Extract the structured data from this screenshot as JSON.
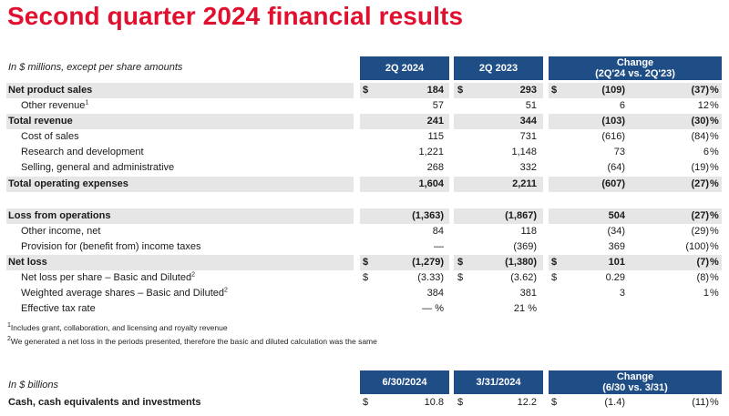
{
  "title": "Second quarter 2024 financial results",
  "income": {
    "units_label": "In $ millions, except per share amounts",
    "headers": {
      "col1": "2Q 2024",
      "col2": "2Q 2023",
      "change_line1": "Change",
      "change_line2": "(2Q'24 vs. 2Q'23)"
    },
    "rows": [
      {
        "label": "Net product sales",
        "sup": "",
        "bold": true,
        "indent": false,
        "shaded": true,
        "d1": "$",
        "v1": "184",
        "d2": "$",
        "v2": "293",
        "d3": "$",
        "v3": "(109)",
        "pct": "(37)",
        "pct_sign": "%"
      },
      {
        "label": "Other revenue",
        "sup": "1",
        "bold": false,
        "indent": true,
        "shaded": false,
        "d1": "",
        "v1": "57",
        "d2": "",
        "v2": "51",
        "d3": "",
        "v3": "6",
        "pct": "12",
        "pct_sign": "%"
      },
      {
        "label": "Total revenue",
        "sup": "",
        "bold": true,
        "indent": false,
        "shaded": true,
        "d1": "",
        "v1": "241",
        "d2": "",
        "v2": "344",
        "d3": "",
        "v3": "(103)",
        "pct": "(30)",
        "pct_sign": "%"
      },
      {
        "label": "Cost of sales",
        "sup": "",
        "bold": false,
        "indent": true,
        "shaded": false,
        "d1": "",
        "v1": "115",
        "d2": "",
        "v2": "731",
        "d3": "",
        "v3": "(616)",
        "pct": "(84)",
        "pct_sign": "%"
      },
      {
        "label": "Research and development",
        "sup": "",
        "bold": false,
        "indent": true,
        "shaded": false,
        "d1": "",
        "v1": "1,221",
        "d2": "",
        "v2": "1,148",
        "d3": "",
        "v3": "73",
        "pct": "6",
        "pct_sign": "%"
      },
      {
        "label": "Selling, general and administrative",
        "sup": "",
        "bold": false,
        "indent": true,
        "shaded": false,
        "d1": "",
        "v1": "268",
        "d2": "",
        "v2": "332",
        "d3": "",
        "v3": "(64)",
        "pct": "(19)",
        "pct_sign": "%"
      },
      {
        "label": "Total operating expenses",
        "sup": "",
        "bold": true,
        "indent": false,
        "shaded": true,
        "d1": "",
        "v1": "1,604",
        "d2": "",
        "v2": "2,211",
        "d3": "",
        "v3": "(607)",
        "pct": "(27)",
        "pct_sign": "%"
      },
      {
        "label": "Loss from operations",
        "sup": "",
        "bold": true,
        "indent": false,
        "shaded": true,
        "d1": "",
        "v1": "(1,363)",
        "d2": "",
        "v2": "(1,867)",
        "d3": "",
        "v3": "504",
        "pct": "(27)",
        "pct_sign": "%"
      },
      {
        "label": "Other income, net",
        "sup": "",
        "bold": false,
        "indent": true,
        "shaded": false,
        "d1": "",
        "v1": "84",
        "d2": "",
        "v2": "118",
        "d3": "",
        "v3": "(34)",
        "pct": "(29)",
        "pct_sign": "%"
      },
      {
        "label": "Provision for (benefit from) income taxes",
        "sup": "",
        "bold": false,
        "indent": true,
        "shaded": false,
        "d1": "",
        "v1": "—",
        "d2": "",
        "v2": "(369)",
        "d3": "",
        "v3": "369",
        "pct": "(100)",
        "pct_sign": "%"
      },
      {
        "label": "Net loss",
        "sup": "",
        "bold": true,
        "indent": false,
        "shaded": true,
        "d1": "$",
        "v1": "(1,279)",
        "d2": "$",
        "v2": "(1,380)",
        "d3": "$",
        "v3": "101",
        "pct": "(7)",
        "pct_sign": "%"
      },
      {
        "label": "Net loss per share – Basic and Diluted",
        "sup": "2",
        "bold": false,
        "indent": true,
        "shaded": false,
        "d1": "$",
        "v1": "(3.33)",
        "d2": "$",
        "v2": "(3.62)",
        "d3": "$",
        "v3": "0.29",
        "pct": "(8)",
        "pct_sign": "%"
      },
      {
        "label": "Weighted average shares – Basic and Diluted",
        "sup": "2",
        "bold": false,
        "indent": true,
        "shaded": false,
        "d1": "",
        "v1": "384",
        "d2": "",
        "v2": "381",
        "d3": "",
        "v3": "3",
        "pct": "1",
        "pct_sign": "%"
      },
      {
        "label": "Effective tax rate",
        "sup": "",
        "bold": false,
        "indent": true,
        "shaded": false,
        "d1": "",
        "v1": "— %",
        "d2": "",
        "v2": "21 %",
        "d3": "",
        "v3": "",
        "pct": "",
        "pct_sign": ""
      }
    ]
  },
  "footnotes": [
    {
      "mark": "1",
      "text": "Includes grant, collaboration, and licensing and royalty revenue"
    },
    {
      "mark": "2",
      "text": "We generated a net loss in the periods presented, therefore the basic and diluted calculation was the same"
    }
  ],
  "balance": {
    "units_label": "In $ billions",
    "headers": {
      "col1": "6/30/2024",
      "col2": "3/31/2024",
      "change_line1": "Change",
      "change_line2": "(6/30 vs. 3/31)"
    },
    "row": {
      "label": "Cash, cash equivalents and investments",
      "d1": "$",
      "v1": "10.8",
      "d2": "$",
      "v2": "12.2",
      "d3": "$",
      "v3": "(1.4)",
      "pct": "(11)",
      "pct_sign": "%"
    }
  },
  "colors": {
    "title": "#e0102e",
    "header_bg": "#1f4e87",
    "shade": "#e6e6e6"
  }
}
